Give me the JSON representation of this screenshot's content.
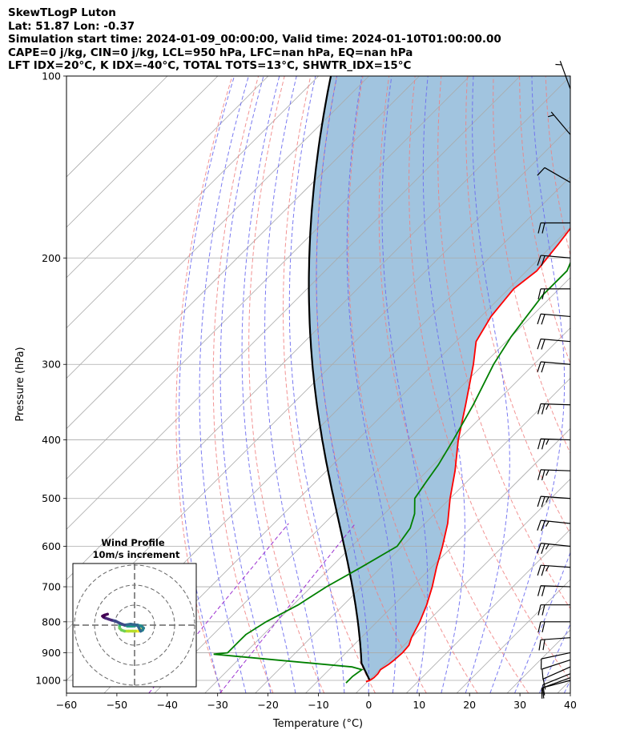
{
  "header": {
    "title": "SkewTLogP Luton",
    "location": "Lat: 51.87   Lon: -0.37",
    "times": "Simulation start time: 2024-01-09_00:00:00, Valid time: 2024-01-10T01:00:00.00",
    "indices1": "CAPE=0 j/kg, CIN=0 j/kg, LCL=950 hPa, LFC=nan hPa, EQ=nan hPa",
    "indices2": "LFT IDX=20°C, K IDX=-40°C, TOTAL TOTS=13°C, SHWTR_IDX=15°C"
  },
  "chart_data": {
    "type": "skewt",
    "xlabel": "Temperature (°C)",
    "ylabel": "Pressure (hPa)",
    "xlim": [
      -60,
      40
    ],
    "ylim": [
      1050,
      100
    ],
    "x_ticks": [
      -60,
      -50,
      -40,
      -30,
      -20,
      -10,
      0,
      10,
      20,
      30,
      40
    ],
    "x_tick_labels": [
      "−60",
      "−50",
      "−40",
      "−30",
      "−20",
      "−10",
      "0",
      "10",
      "20",
      "30",
      "40"
    ],
    "y_ticks": [
      1000,
      900,
      800,
      700,
      600,
      500,
      400,
      300,
      200,
      100
    ],
    "y_tick_labels": [
      "1000",
      "900",
      "800",
      "700",
      "600",
      "500",
      "400",
      "300",
      "200",
      "100"
    ],
    "grid": true,
    "colors": {
      "temperature": "#ff0000",
      "dewpoint": "#008000",
      "parcel": "#000000",
      "shade": "#a1c4df",
      "dry_adiabat": "#f08080",
      "moist_adiabat": "#6b6bf0",
      "isotherm": "#aaaaaa",
      "mixing_ratio": "#9b30d0"
    },
    "temperature": {
      "pressure": [
        1005,
        1000,
        990,
        975,
        960,
        940,
        925,
        900,
        875,
        850,
        800,
        750,
        700,
        650,
        600,
        550,
        500,
        450,
        400,
        350,
        300,
        275,
        250,
        225,
        210,
        190,
        175,
        150,
        140,
        130,
        120,
        110,
        100
      ],
      "temperature": [
        -0.3,
        0.2,
        0.5,
        0.5,
        0.2,
        0.8,
        1.0,
        1.2,
        1.0,
        0.0,
        -1.5,
        -3.5,
        -6.0,
        -9.0,
        -12.0,
        -15.5,
        -20.0,
        -24.5,
        -30.0,
        -35.5,
        -42.0,
        -46.0,
        -48.0,
        -49.0,
        -48.0,
        -49.0,
        -50.0,
        -50.0,
        -51.0,
        -53.0,
        -57.0,
        -60.0,
        -63.0
      ]
    },
    "dewpoint": {
      "pressure": [
        1010,
        985,
        960,
        950,
        905,
        900,
        860,
        840,
        800,
        750,
        700,
        650,
        600,
        560,
        530,
        500,
        470,
        440,
        400,
        350,
        300,
        270,
        230,
        210,
        190,
        175,
        160,
        140,
        120,
        110,
        100
      ],
      "dewpoint": [
        -4.0,
        -4.0,
        -3.5,
        -6.0,
        -36.0,
        -33.5,
        -33.5,
        -33.5,
        -32.0,
        -29.0,
        -27.0,
        -24.0,
        -21.0,
        -22.0,
        -24.0,
        -27.0,
        -28.0,
        -29.0,
        -31.0,
        -34.0,
        -38.0,
        -40.0,
        -42.0,
        -42.0,
        -45.0,
        -47.0,
        -49.0,
        -50.0,
        -51.0,
        -52.0,
        -53.0
      ]
    },
    "parcel_start": {
      "pressure": 1000,
      "temperature": 0.2,
      "dewpoint": -4.0
    },
    "wind_barbs": [
      {
        "pressure": 1000,
        "speed_kt": 12,
        "direction_deg": 255
      },
      {
        "pressure": 990,
        "speed_kt": 12,
        "direction_deg": 250
      },
      {
        "pressure": 975,
        "speed_kt": 12,
        "direction_deg": 248
      },
      {
        "pressure": 950,
        "speed_kt": 11,
        "direction_deg": 246
      },
      {
        "pressure": 925,
        "speed_kt": 10,
        "direction_deg": 252
      },
      {
        "pressure": 900,
        "speed_kt": 10,
        "direction_deg": 258
      },
      {
        "pressure": 850,
        "speed_kt": 20,
        "direction_deg": 266
      },
      {
        "pressure": 800,
        "speed_kt": 20,
        "direction_deg": 270
      },
      {
        "pressure": 750,
        "speed_kt": 20,
        "direction_deg": 270
      },
      {
        "pressure": 700,
        "speed_kt": 20,
        "direction_deg": 272
      },
      {
        "pressure": 650,
        "speed_kt": 25,
        "direction_deg": 274
      },
      {
        "pressure": 600,
        "speed_kt": 25,
        "direction_deg": 276
      },
      {
        "pressure": 550,
        "speed_kt": 25,
        "direction_deg": 276
      },
      {
        "pressure": 500,
        "speed_kt": 25,
        "direction_deg": 274
      },
      {
        "pressure": 450,
        "speed_kt": 25,
        "direction_deg": 272
      },
      {
        "pressure": 400,
        "speed_kt": 25,
        "direction_deg": 272
      },
      {
        "pressure": 350,
        "speed_kt": 25,
        "direction_deg": 272
      },
      {
        "pressure": 300,
        "speed_kt": 20,
        "direction_deg": 275
      },
      {
        "pressure": 275,
        "speed_kt": 20,
        "direction_deg": 275
      },
      {
        "pressure": 250,
        "speed_kt": 20,
        "direction_deg": 275
      },
      {
        "pressure": 225,
        "speed_kt": 20,
        "direction_deg": 270
      },
      {
        "pressure": 200,
        "speed_kt": 20,
        "direction_deg": 275
      },
      {
        "pressure": 175,
        "speed_kt": 20,
        "direction_deg": 270
      },
      {
        "pressure": 150,
        "speed_kt": 10,
        "direction_deg": 300
      },
      {
        "pressure": 125,
        "speed_kt": 5,
        "direction_deg": 320
      },
      {
        "pressure": 105,
        "speed_kt": 5,
        "direction_deg": 340
      }
    ],
    "hodograph": {
      "title": "Wind Profile",
      "subtitle": "10m/s increment",
      "ring_increment_ms": 10,
      "rings_ms": [
        10,
        20,
        30
      ],
      "u_ms": [
        3.0,
        2.0,
        0.5,
        -1.0,
        -3.0,
        -5.0,
        -6.5,
        -7.5,
        -7.5,
        -6.5,
        -5.0,
        -3.5,
        -1.0,
        1.5,
        3.5,
        4.5,
        4.0,
        3.0,
        1.5,
        -2.0,
        -5.0,
        -7.5,
        -9.5,
        -11.5,
        -13.0,
        -14.5,
        -15.5,
        -16.0,
        -15.0,
        -13.5
      ],
      "v_ms": [
        -2.0,
        -3.0,
        -3.0,
        -3.0,
        -3.0,
        -3.0,
        -2.5,
        -1.5,
        0.0,
        0.5,
        0.0,
        -0.5,
        -0.5,
        0.0,
        -0.5,
        -1.5,
        -2.5,
        -3.0,
        0.0,
        0.5,
        0.0,
        1.0,
        2.0,
        2.5,
        3.0,
        3.5,
        4.0,
        4.5,
        5.0,
        5.5
      ]
    }
  }
}
